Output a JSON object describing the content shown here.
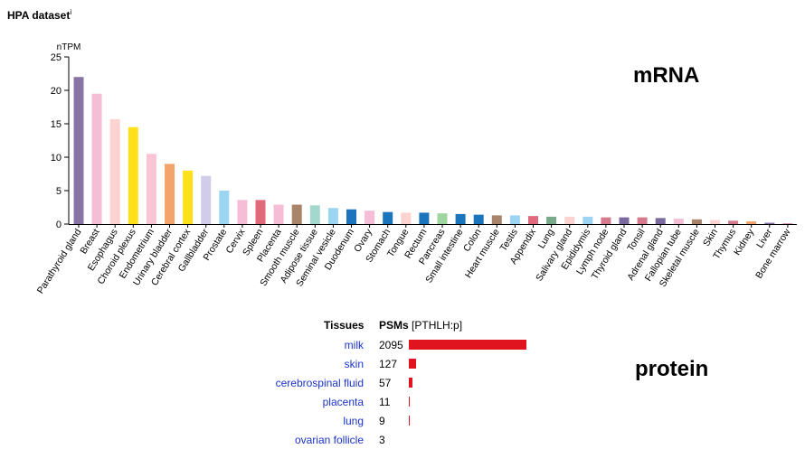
{
  "title": "HPA dataset",
  "title_info": "i",
  "mrna_label": "mRNA",
  "protein_label": "protein",
  "chart_data": {
    "type": "bar",
    "ylabel": "nTPM",
    "ylim": [
      0,
      25
    ],
    "yticks": [
      "0",
      "5",
      "10",
      "15",
      "20",
      "25"
    ],
    "categories": [
      "Parathyroid gland",
      "Breast",
      "Esophagus",
      "Choroid plexus",
      "Endometrium",
      "Urinary bladder",
      "Cerebral cortex",
      "Gallbladder",
      "Prostate",
      "Cervix",
      "Spleen",
      "Placenta",
      "Smooth muscle",
      "Adipose tissue",
      "Seminal vesicle",
      "Duodenum",
      "Ovary",
      "Stomach",
      "Tongue",
      "Rectum",
      "Pancreas",
      "Small intestine",
      "Colon",
      "Heart muscle",
      "Testis",
      "Appendix",
      "Lung",
      "Salivary gland",
      "Epididymis",
      "Lymph node",
      "Thyroid gland",
      "Tonsil",
      "Adrenal gland",
      "Fallopian tube",
      "Skeletal muscle",
      "Skin",
      "Thymus",
      "Kidney",
      "Liver",
      "Bone marrow"
    ],
    "values": [
      22.0,
      19.5,
      15.7,
      14.5,
      10.5,
      9.0,
      8.0,
      7.2,
      5.0,
      3.6,
      3.6,
      2.9,
      2.9,
      2.8,
      2.4,
      2.2,
      2.0,
      1.8,
      1.7,
      1.7,
      1.6,
      1.5,
      1.4,
      1.3,
      1.3,
      1.2,
      1.1,
      1.1,
      1.1,
      1.0,
      1.0,
      1.0,
      0.9,
      0.8,
      0.7,
      0.6,
      0.5,
      0.4,
      0.2,
      0.1
    ],
    "colors": [
      "#8874a4",
      "#f6bdd6",
      "#fbd4d1",
      "#ffe01b",
      "#f9c4d4",
      "#f4a46b",
      "#ffe01b",
      "#d1cde8",
      "#9bd5f2",
      "#f6bdd6",
      "#e06a7c",
      "#f6bdd6",
      "#a8846a",
      "#a4d8cf",
      "#9bd5f2",
      "#1a75bc",
      "#f6bdd6",
      "#1a75bc",
      "#fbd4d1",
      "#1a75bc",
      "#9fd69e",
      "#1a75bc",
      "#1a75bc",
      "#a8846a",
      "#9bd5f2",
      "#e06a7c",
      "#77aa88",
      "#fbd4d1",
      "#9bd5f2",
      "#d47a8c",
      "#7a6aa0",
      "#d47a8c",
      "#7a6aa0",
      "#f6bdd6",
      "#a8846a",
      "#fbd4d1",
      "#d47a8c",
      "#f4a46b",
      "#8874a4",
      "#d47a8c"
    ]
  },
  "protein": {
    "header_tissues": "Tissues",
    "header_psms": "PSMs",
    "header_peptide": "[PTHLH:p]",
    "rows": [
      {
        "tissue": "milk",
        "value": "2095",
        "psms": 2095
      },
      {
        "tissue": "skin",
        "value": "127",
        "psms": 127
      },
      {
        "tissue": "cerebrospinal fluid",
        "value": "57",
        "psms": 57
      },
      {
        "tissue": "placenta",
        "value": "11",
        "psms": 11
      },
      {
        "tissue": "lung",
        "value": "9",
        "psms": 9
      },
      {
        "tissue": "ovarian follicle",
        "value": "3",
        "psms": 3
      }
    ]
  }
}
